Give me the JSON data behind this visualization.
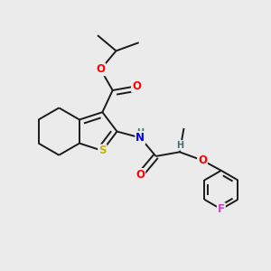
{
  "background_color": "#ebebeb",
  "bond_color": "#1a1a1a",
  "atom_colors": {
    "S": "#c8b400",
    "O": "#ff0000",
    "N": "#0000ff",
    "F": "#cc44cc",
    "H": "#407070",
    "C": "#1a1a1a"
  },
  "figsize": [
    3.0,
    3.0
  ],
  "dpi": 100
}
